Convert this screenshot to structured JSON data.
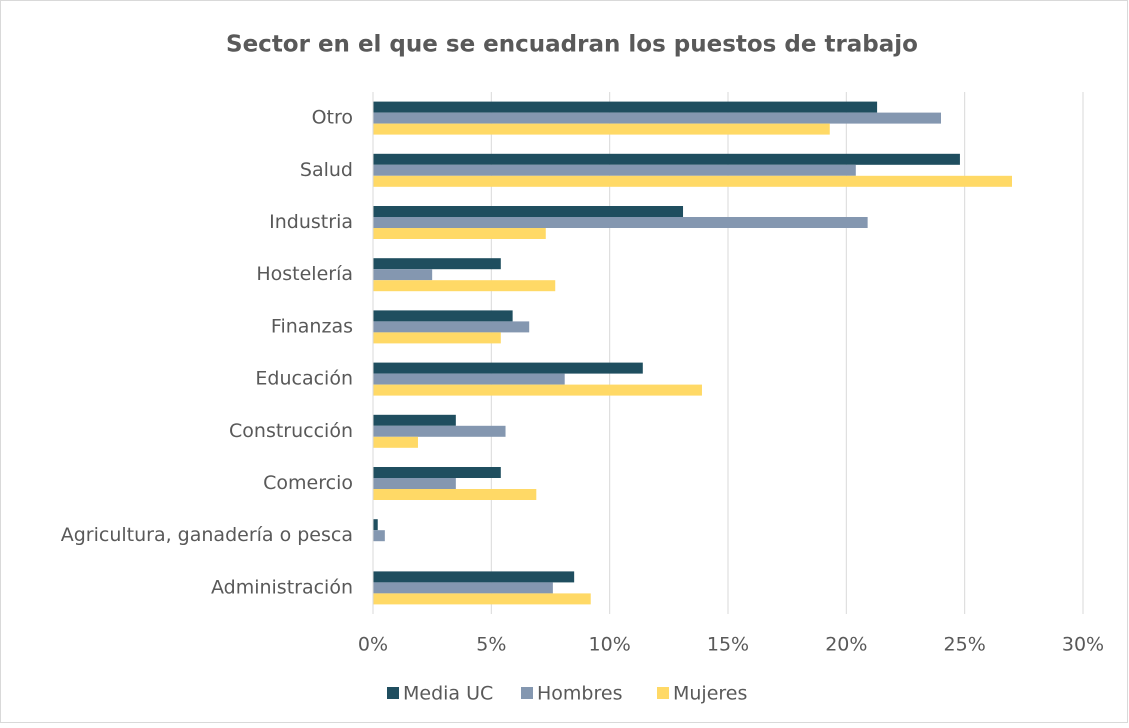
{
  "chart_data": {
    "type": "bar",
    "orientation": "horizontal",
    "title": "Sector en el que se encuadran los puestos de trabajo",
    "categories": [
      "Otro",
      "Salud",
      "Industria",
      "Hostelería",
      "Finanzas",
      "Educación",
      "Construcción",
      "Comercio",
      "Agricultura, ganadería o pesca",
      "Administración"
    ],
    "series": [
      {
        "name": "Media UC",
        "color": "#1f4e5f",
        "values": [
          21.3,
          24.8,
          13.1,
          5.4,
          5.9,
          11.4,
          3.5,
          5.4,
          0.2,
          8.5
        ]
      },
      {
        "name": "Hombres",
        "color": "#8497b0",
        "values": [
          24.0,
          20.4,
          20.9,
          2.5,
          6.6,
          8.1,
          5.6,
          3.5,
          0.5,
          7.6
        ]
      },
      {
        "name": "Mujeres",
        "color": "#ffd966",
        "values": [
          19.3,
          27.0,
          7.3,
          7.7,
          5.4,
          13.9,
          1.9,
          6.9,
          0,
          9.2
        ]
      }
    ],
    "xlim": [
      0,
      30
    ],
    "xticks": [
      {
        "value": 0,
        "label": "0%"
      },
      {
        "value": 5,
        "label": "5%"
      },
      {
        "value": 10,
        "label": "10%"
      },
      {
        "value": 15,
        "label": "15%"
      },
      {
        "value": 20,
        "label": "20%"
      },
      {
        "value": 25,
        "label": "25%"
      },
      {
        "value": 30,
        "label": "30%"
      }
    ],
    "grid": true,
    "legend": "bottom"
  }
}
